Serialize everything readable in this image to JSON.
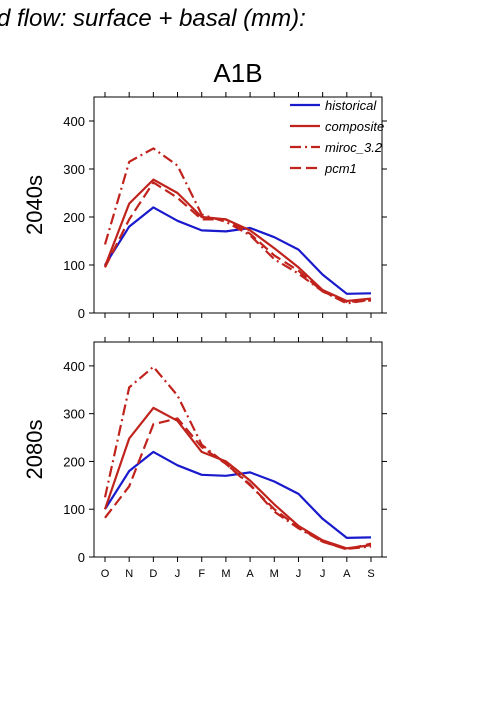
{
  "page_title": "d flow: surface + basal (mm):",
  "scenario": "A1B",
  "colors": {
    "historical": "#1a1acd",
    "model": "#c0221c"
  },
  "chart_data": [
    {
      "type": "line",
      "panel_label": "2040s",
      "x": [
        "O",
        "N",
        "D",
        "J",
        "F",
        "M",
        "A",
        "M",
        "J",
        "J",
        "A",
        "S"
      ],
      "ylim": [
        0,
        450
      ],
      "yticks": [
        0,
        100,
        200,
        300,
        400
      ],
      "series": [
        {
          "name": "historical",
          "style": "solid",
          "color": "#1a1acd",
          "values": [
            100,
            180,
            220,
            192,
            172,
            170,
            177,
            158,
            132,
            80,
            40,
            41
          ]
        },
        {
          "name": "composite",
          "style": "solid",
          "color": "#c0221c",
          "values": [
            97,
            228,
            278,
            250,
            200,
            195,
            172,
            135,
            95,
            48,
            25,
            30
          ]
        },
        {
          "name": "miroc_3.2",
          "style": "dashdot",
          "color": "#c0221c",
          "values": [
            143,
            315,
            343,
            307,
            205,
            190,
            162,
            112,
            82,
            45,
            20,
            28
          ]
        },
        {
          "name": "pcm1",
          "style": "dashed",
          "color": "#c0221c",
          "values": [
            95,
            195,
            272,
            240,
            195,
            195,
            165,
            120,
            88,
            45,
            23,
            26
          ]
        }
      ]
    },
    {
      "type": "line",
      "panel_label": "2080s",
      "x": [
        "O",
        "N",
        "D",
        "J",
        "F",
        "M",
        "A",
        "M",
        "J",
        "J",
        "A",
        "S"
      ],
      "ylim": [
        0,
        450
      ],
      "yticks": [
        0,
        100,
        200,
        300,
        400
      ],
      "series": [
        {
          "name": "historical",
          "style": "solid",
          "color": "#1a1acd",
          "values": [
            100,
            180,
            220,
            192,
            172,
            170,
            177,
            158,
            132,
            80,
            40,
            41
          ]
        },
        {
          "name": "composite",
          "style": "solid",
          "color": "#c0221c",
          "values": [
            100,
            248,
            312,
            285,
            220,
            200,
            160,
            110,
            65,
            35,
            18,
            25
          ]
        },
        {
          "name": "miroc_3.2",
          "style": "dashdot",
          "color": "#c0221c",
          "values": [
            125,
            355,
            398,
            338,
            235,
            195,
            152,
            95,
            60,
            32,
            17,
            22
          ]
        },
        {
          "name": "pcm1",
          "style": "dashed",
          "color": "#c0221c",
          "values": [
            82,
            148,
            278,
            290,
            230,
            195,
            150,
            100,
            62,
            32,
            16,
            28
          ]
        }
      ]
    }
  ]
}
